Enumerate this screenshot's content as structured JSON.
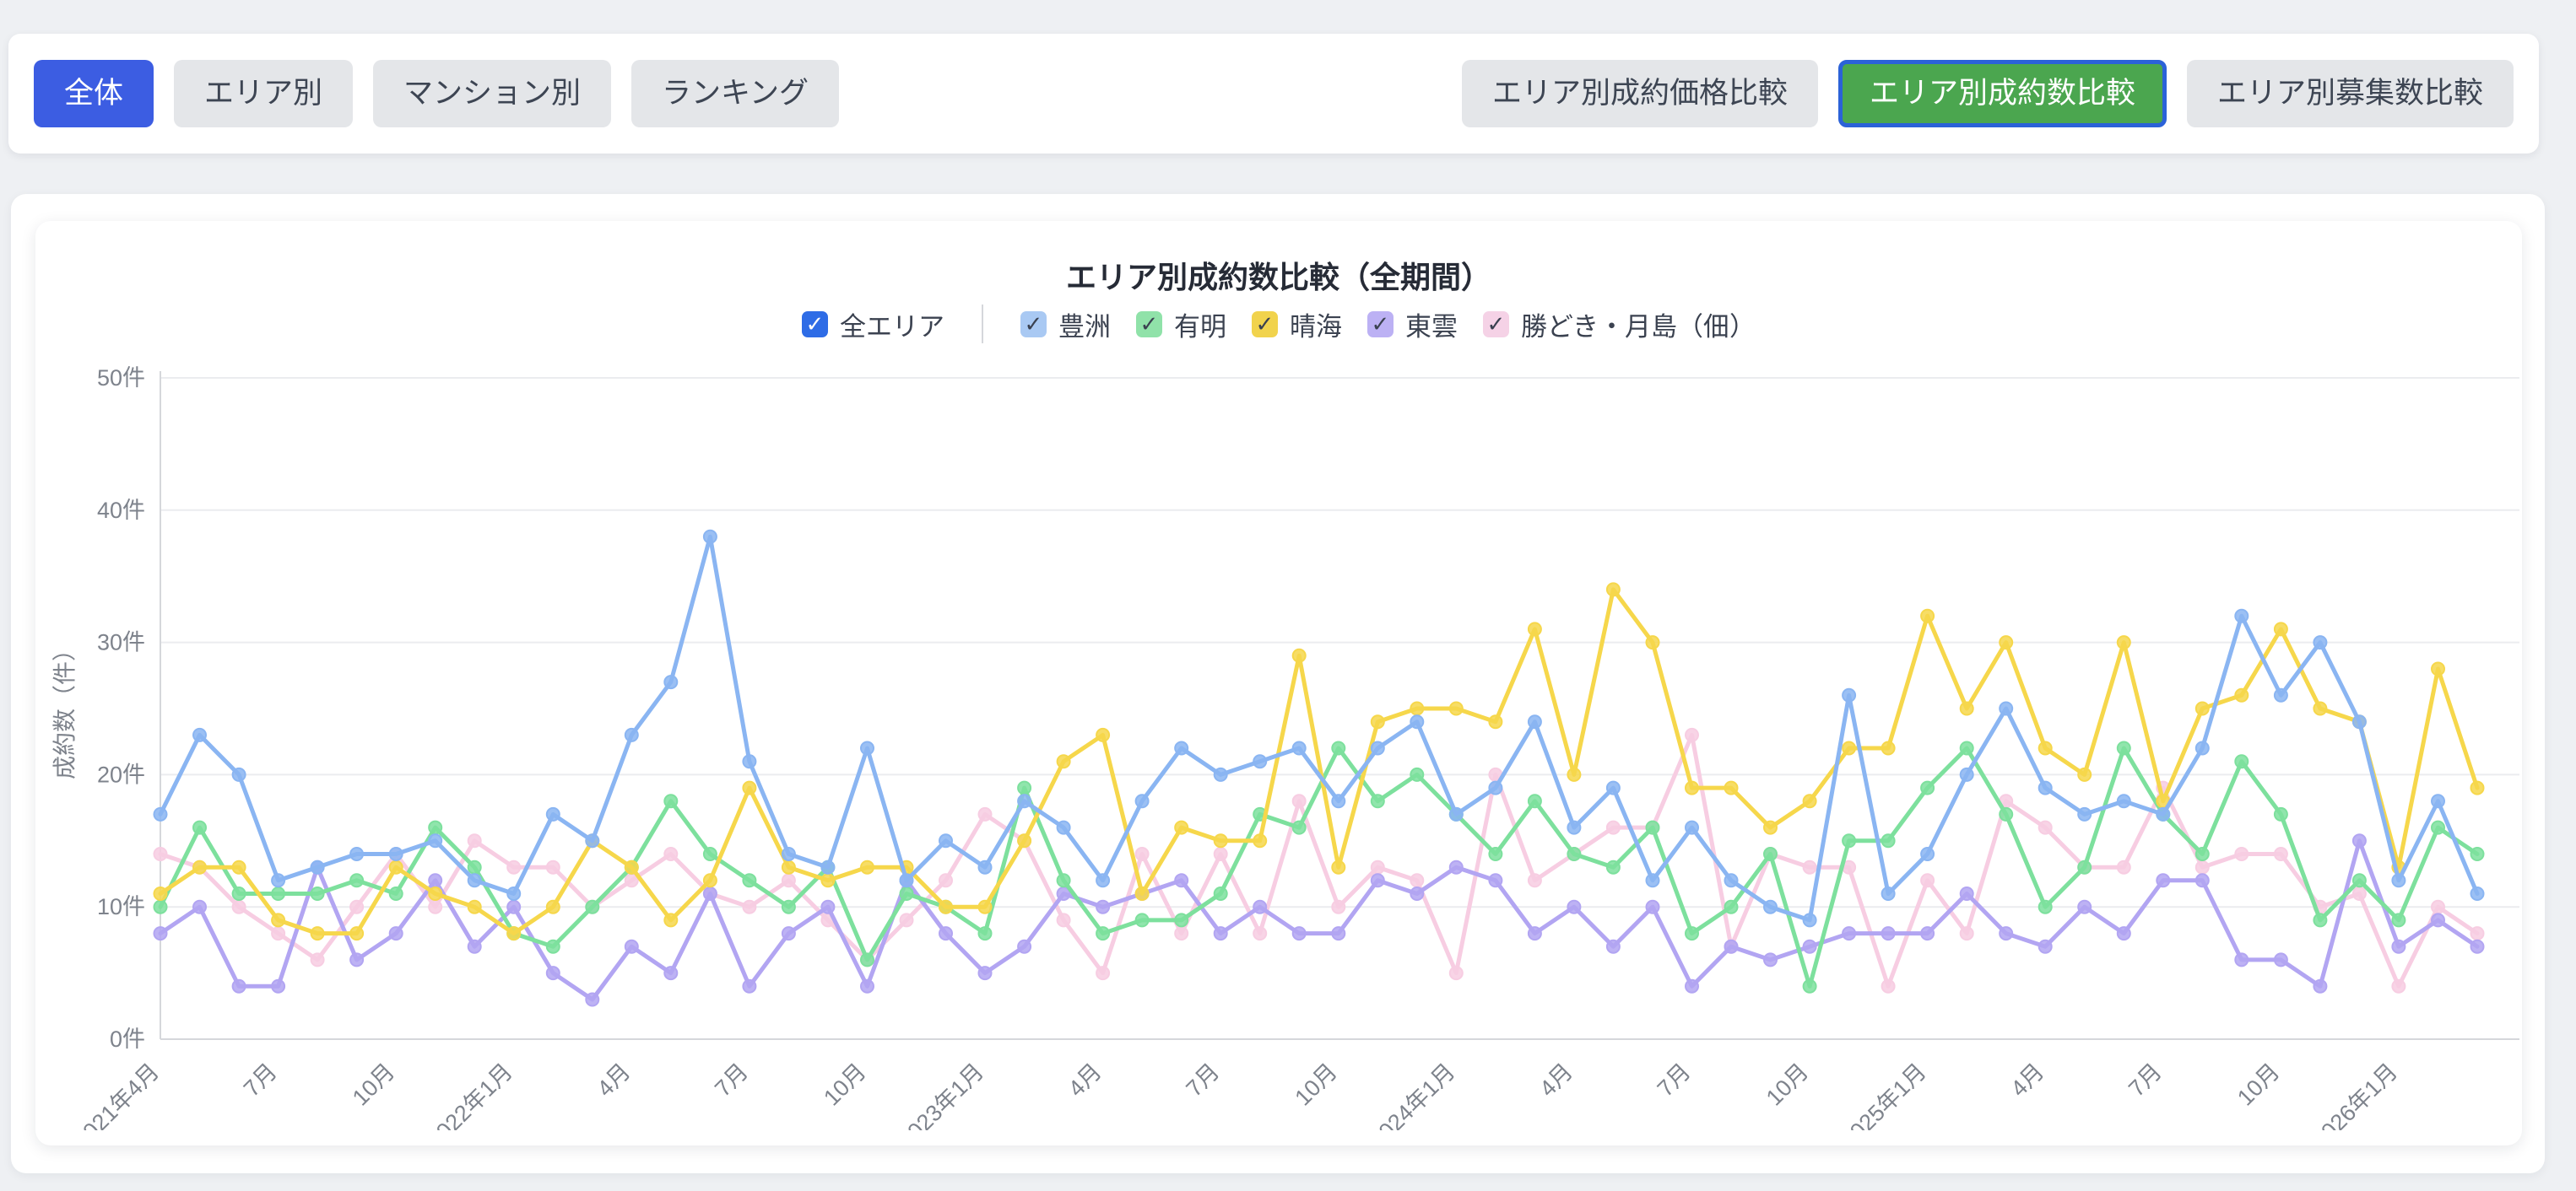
{
  "page": {
    "background": "#eef0f3"
  },
  "toolbar": {
    "left_tabs": [
      {
        "key": "tab-overall",
        "label": "全体",
        "active": true
      },
      {
        "key": "tab-by-area",
        "label": "エリア別",
        "active": false
      },
      {
        "key": "tab-by-building",
        "label": "マンション別",
        "active": false
      },
      {
        "key": "tab-ranking",
        "label": "ランキング",
        "active": false
      }
    ],
    "right_tabs": [
      {
        "key": "tab-price-comparison",
        "label": "エリア別成約価格比較",
        "active": false
      },
      {
        "key": "tab-count-comparison",
        "label": "エリア別成約数比較",
        "active": true
      },
      {
        "key": "tab-listing-comparison",
        "label": "エリア別募集数比較",
        "active": false
      }
    ],
    "active_blue_color": "#3c5de2",
    "active_green_color": "#4ba64f",
    "active_green_ring_color": "#2b62d8"
  },
  "chart_card": {
    "title": "エリア別成約数比較（全期間）"
  },
  "legend": {
    "master": {
      "key": "legend-all-areas",
      "label": "全エリア",
      "checked": true,
      "box_color": "#2e6ce6",
      "check_color": "#ffffff"
    },
    "items": [
      {
        "key": "legend-toyosu",
        "label": "豊洲",
        "checked": true,
        "box_color": "#a9c9f3"
      },
      {
        "key": "legend-ariake",
        "label": "有明",
        "checked": true,
        "box_color": "#90e2a9"
      },
      {
        "key": "legend-harumi",
        "label": "晴海",
        "checked": true,
        "box_color": "#f1d34d"
      },
      {
        "key": "legend-shinonome",
        "label": "東雲",
        "checked": true,
        "box_color": "#bcb1f4"
      },
      {
        "key": "legend-kachidoki",
        "label": "勝どき・月島（佃）",
        "checked": true,
        "box_color": "#f5d2e6"
      }
    ],
    "check_color": "#3a4150"
  },
  "chart_data": {
    "type": "line",
    "title": "エリア別成約数比較（全期間）",
    "xlabel": "",
    "ylabel": "成約数（件）",
    "ylim": [
      0,
      50
    ],
    "y_ticks": [
      "0件",
      "10件",
      "20件",
      "30件",
      "40件",
      "50件"
    ],
    "grid": true,
    "legend_position": "top",
    "n_points": 60,
    "x_start": "2021年4月",
    "x_tick_interval": 3,
    "x_tick_labels": [
      "2021年4月",
      "7月",
      "10月",
      "2022年1月",
      "4月",
      "7月",
      "10月",
      "2023年1月",
      "4月",
      "7月",
      "10月",
      "2024年1月",
      "4月",
      "7月",
      "10月",
      "2025年1月",
      "4月",
      "7月",
      "10月",
      "2026年1月"
    ],
    "series": [
      {
        "name": "豊洲",
        "color": "#8ab5f2",
        "values": [
          17,
          23,
          20,
          12,
          13,
          14,
          14,
          15,
          12,
          11,
          17,
          15,
          23,
          27,
          38,
          21,
          14,
          13,
          22,
          12,
          15,
          13,
          18,
          16,
          12,
          18,
          22,
          20,
          21,
          22,
          18,
          22,
          24,
          17,
          19,
          24,
          16,
          19,
          12,
          16,
          12,
          10,
          9,
          26,
          11,
          14,
          20,
          25,
          19,
          17,
          18,
          17,
          22,
          32,
          26,
          30,
          24,
          12,
          18,
          11
        ]
      },
      {
        "name": "有明",
        "color": "#7de09d",
        "values": [
          10,
          16,
          11,
          11,
          11,
          12,
          11,
          16,
          13,
          8,
          7,
          10,
          13,
          18,
          14,
          12,
          10,
          13,
          6,
          11,
          10,
          8,
          19,
          12,
          8,
          9,
          9,
          11,
          17,
          16,
          22,
          18,
          20,
          17,
          14,
          18,
          14,
          13,
          16,
          8,
          10,
          14,
          4,
          15,
          15,
          19,
          22,
          17,
          10,
          13,
          22,
          17,
          14,
          21,
          17,
          9,
          12,
          9,
          16,
          14
        ]
      },
      {
        "name": "晴海",
        "color": "#f6d74b",
        "values": [
          11,
          13,
          13,
          9,
          8,
          8,
          13,
          11,
          10,
          8,
          10,
          15,
          13,
          9,
          12,
          19,
          13,
          12,
          13,
          13,
          10,
          10,
          15,
          21,
          23,
          11,
          16,
          15,
          15,
          29,
          13,
          24,
          25,
          25,
          24,
          31,
          20,
          34,
          30,
          19,
          19,
          16,
          18,
          22,
          22,
          32,
          25,
          30,
          22,
          20,
          30,
          18,
          25,
          26,
          31,
          25,
          24,
          13,
          28,
          19
        ]
      },
      {
        "name": "東雲",
        "color": "#b2a5f2",
        "values": [
          8,
          10,
          4,
          4,
          13,
          6,
          8,
          12,
          7,
          10,
          5,
          3,
          7,
          5,
          11,
          4,
          8,
          10,
          4,
          12,
          8,
          5,
          7,
          11,
          10,
          11,
          12,
          8,
          10,
          8,
          8,
          12,
          11,
          13,
          12,
          8,
          10,
          7,
          10,
          4,
          7,
          6,
          7,
          8,
          8,
          8,
          11,
          8,
          7,
          10,
          8,
          12,
          12,
          6,
          6,
          4,
          15,
          7,
          9,
          7
        ]
      },
      {
        "name": "勝どき・月島（佃）",
        "color": "#f7cde2",
        "values": [
          14,
          13,
          10,
          8,
          6,
          10,
          14,
          10,
          15,
          13,
          13,
          10,
          12,
          14,
          11,
          10,
          12,
          9,
          6,
          9,
          12,
          17,
          15,
          9,
          5,
          14,
          8,
          14,
          8,
          18,
          10,
          13,
          12,
          5,
          20,
          12,
          14,
          16,
          16,
          23,
          7,
          14,
          13,
          13,
          4,
          12,
          8,
          18,
          16,
          13,
          13,
          19,
          13,
          14,
          14,
          10,
          11,
          4,
          10,
          8
        ]
      }
    ],
    "style": {
      "grid_color": "#ebecef",
      "axis_color": "#d5d7db",
      "tick_text_color": "#7e838c",
      "line_width": 5,
      "point_radius": 7.5
    }
  }
}
